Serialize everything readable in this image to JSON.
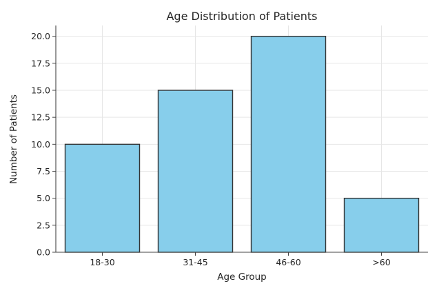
{
  "chart_data": {
    "type": "bar",
    "title": "Age Distribution of Patients",
    "xlabel": "Age Group",
    "ylabel": "Number of Patients",
    "categories": [
      "18-30",
      "31-45",
      "46-60",
      ">60"
    ],
    "values": [
      10,
      15,
      20,
      5
    ],
    "ylim": [
      0,
      21
    ],
    "yticks": [
      0,
      2.5,
      5,
      7.5,
      10,
      12.5,
      15,
      17.5,
      20
    ],
    "ytick_labels": [
      "0.0",
      "2.5",
      "5.0",
      "7.5",
      "10.0",
      "12.5",
      "15.0",
      "17.5",
      "20.0"
    ],
    "grid": true,
    "bar_color": "#87CEEB",
    "edge_color": "#333333"
  }
}
